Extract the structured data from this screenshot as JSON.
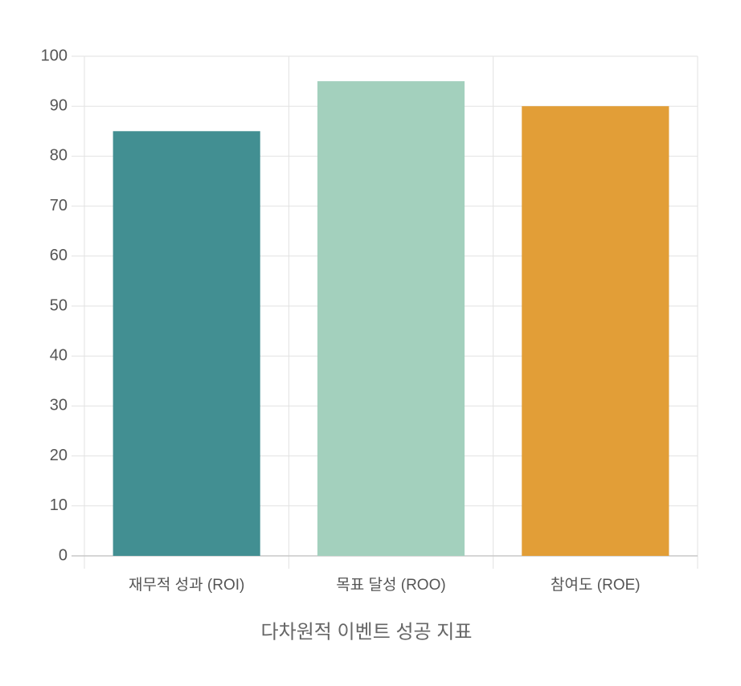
{
  "chart_data": {
    "type": "bar",
    "categories": [
      "재무적 성과 (ROI)",
      "목표 달성 (ROO)",
      "참여도 (ROE)"
    ],
    "values": [
      85,
      95,
      90
    ],
    "colors": [
      "#428f92",
      "#a3d0bd",
      "#e29e37"
    ],
    "x_label": "다차원적 이벤트 성공 지표",
    "ylim": [
      0,
      100
    ],
    "yticks": [
      0,
      10,
      20,
      30,
      40,
      50,
      60,
      70,
      80,
      90,
      100
    ],
    "grid": true
  }
}
